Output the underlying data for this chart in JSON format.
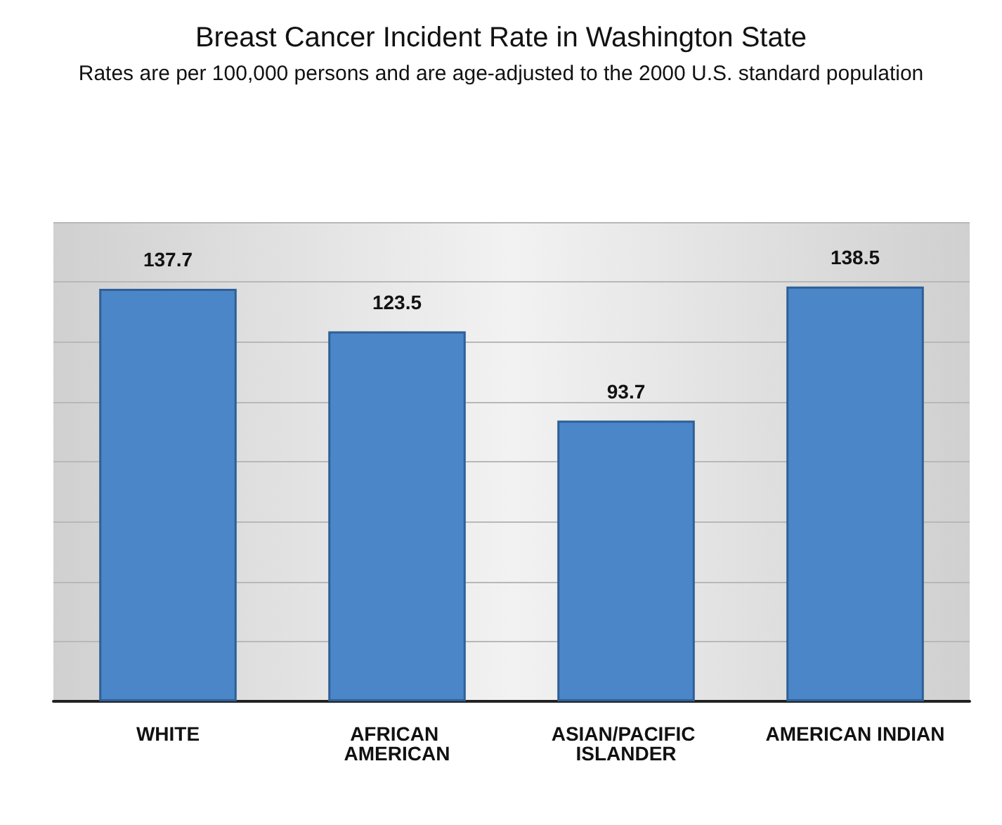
{
  "chart_data": {
    "type": "bar",
    "title": "Breast Cancer Incident Rate in Washington State",
    "subtitle": "Rates are per 100,000 persons and are age-adjusted to the 2000 U.S. standard population",
    "categories": [
      "WHITE",
      "AFRICAN AMERICAN",
      "ASIAN/PACIFIC ISLANDER",
      "AMERICAN INDIAN"
    ],
    "values": [
      137.7,
      123.5,
      93.7,
      138.5
    ],
    "color": "#4a86c8",
    "ylim": [
      0,
      160
    ],
    "yticks": [
      {
        "value": 0,
        "label": null
      },
      {
        "value": 20,
        "label": null
      },
      {
        "value": 40,
        "label": null
      },
      {
        "value": 60,
        "label": null
      },
      {
        "value": 80,
        "label": null
      },
      {
        "value": 100,
        "label": null
      },
      {
        "value": 120,
        "label": null
      },
      {
        "value": 140,
        "label": null
      },
      {
        "value": 160,
        "label": null
      }
    ],
    "tick_labels": "x",
    "grid": "y",
    "data_labels": true
  }
}
